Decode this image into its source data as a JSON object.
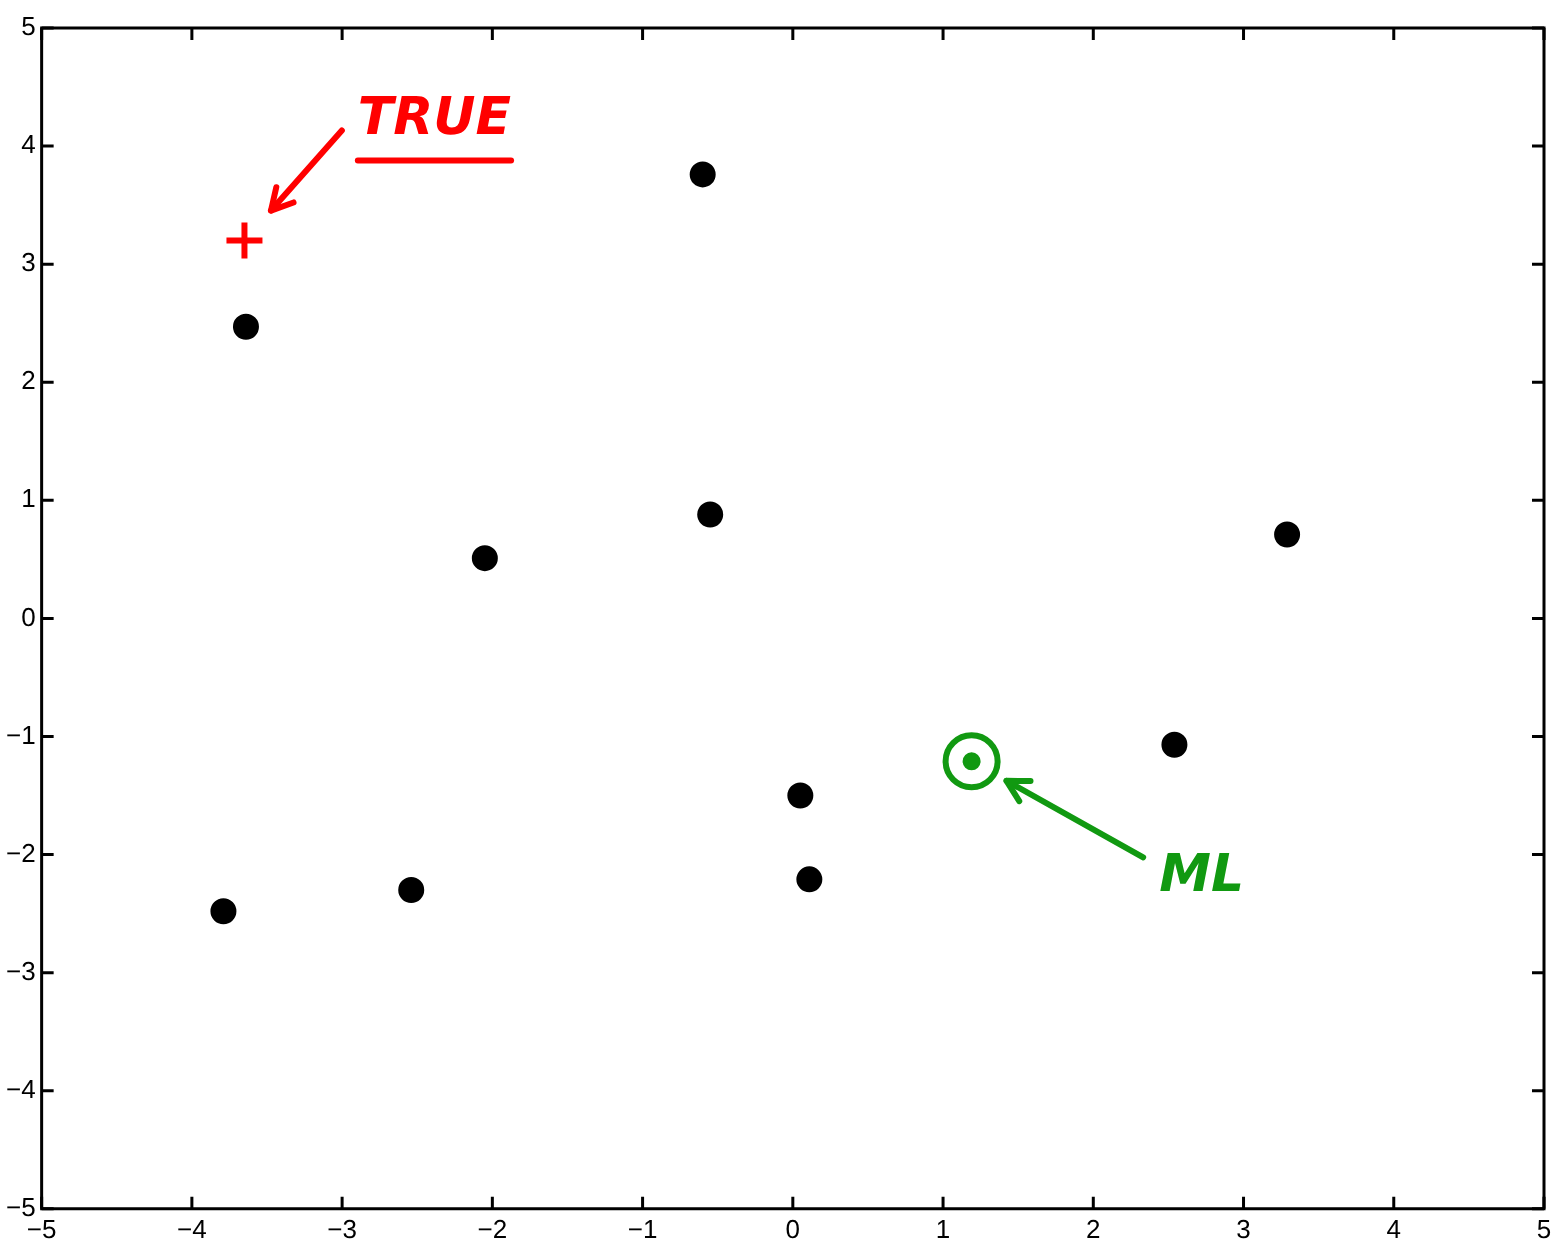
{
  "chart_data": {
    "type": "scatter",
    "xlim": [
      -5,
      5
    ],
    "ylim": [
      -5,
      5
    ],
    "xticks": [
      -5,
      -4,
      -3,
      -2,
      -1,
      0,
      1,
      2,
      3,
      4,
      5
    ],
    "yticks": [
      -5,
      -4,
      -3,
      -2,
      -1,
      0,
      1,
      2,
      3,
      4,
      5
    ],
    "grid": false,
    "legend": false,
    "series": [
      {
        "color": "#000000",
        "marker": "circle",
        "x": [
          -3.64,
          -0.6,
          -2.05,
          -0.55,
          3.29,
          2.54,
          0.05,
          0.11,
          -2.54,
          -3.79
        ],
        "values": [
          2.47,
          3.76,
          0.51,
          0.88,
          0.71,
          -1.07,
          -1.5,
          -2.21,
          -2.3,
          -2.48
        ]
      },
      {
        "color": "#ff0000",
        "marker": "cross",
        "x": [
          -3.65
        ],
        "values": [
          3.2
        ]
      },
      {
        "color": "#119911",
        "marker": "circle",
        "x": [
          1.19
        ],
        "values": [
          -1.21
        ]
      }
    ],
    "annotations": [
      "TRUE",
      "ML"
    ]
  }
}
